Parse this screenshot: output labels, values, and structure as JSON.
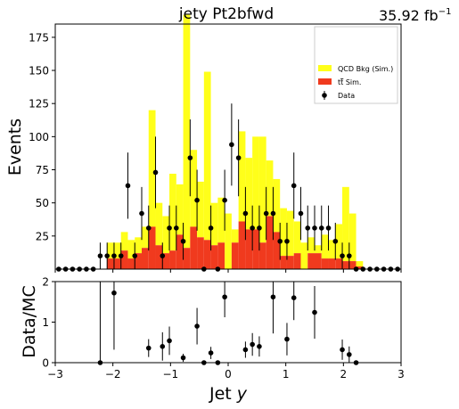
{
  "chart_data": [
    {
      "type": "bar",
      "panel": "main",
      "title": "jety  Pt2bfwd",
      "lumi_label": "35.92 fb",
      "lumi_exponent": "−1",
      "xlabel": "Jet y",
      "xlabel_text": "Jet ",
      "xlabel_var": "y",
      "ylabel": "Events",
      "xlim": [
        -3,
        3
      ],
      "ylim": [
        0,
        185
      ],
      "yticks": [
        25,
        50,
        75,
        100,
        125,
        150,
        175
      ],
      "bin_width": 0.12,
      "grid": false,
      "legend_position": "top-right",
      "legend": [
        {
          "label": "QCD Bkg (Sim.)",
          "color": "#ffff1a",
          "kind": "bar"
        },
        {
          "label": "tt Sim.",
          "label_tex": "t",
          "label_tbar": "t",
          "label_suffix": " Sim.",
          "color": "#f03a1e",
          "kind": "bar"
        },
        {
          "label": "Data",
          "color": "#000000",
          "kind": "marker"
        }
      ],
      "series": [
        {
          "name": "QCD Bkg (Sim.)",
          "color": "#ffff1a",
          "stacked_on": "tt Sim.",
          "bin_lefts": [
            -2.1,
            -1.98,
            -1.86,
            -1.74,
            -1.62,
            -1.5,
            -1.38,
            -1.26,
            -1.14,
            -1.02,
            -0.9,
            -0.78,
            -0.66,
            -0.54,
            -0.42,
            -0.3,
            -0.18,
            -0.06,
            0.06,
            0.18,
            0.3,
            0.42,
            0.54,
            0.66,
            0.78,
            0.9,
            1.02,
            1.14,
            1.26,
            1.38,
            1.5,
            1.62,
            1.74,
            1.86,
            1.98,
            2.1,
            2.22
          ],
          "values": [
            12,
            12,
            14,
            14,
            12,
            16,
            88,
            32,
            28,
            58,
            38,
            176,
            58,
            42,
            127,
            32,
            34,
            42,
            10,
            68,
            54,
            70,
            80,
            42,
            40,
            36,
            34,
            24,
            20,
            12,
            6,
            18,
            14,
            26,
            56,
            36,
            4
          ]
        },
        {
          "name": "tt Sim.",
          "color": "#f03a1e",
          "bin_lefts": [
            -2.1,
            -1.98,
            -1.86,
            -1.74,
            -1.62,
            -1.5,
            -1.38,
            -1.26,
            -1.14,
            -1.02,
            -0.9,
            -0.78,
            -0.66,
            -0.54,
            -0.42,
            -0.3,
            -0.18,
            -0.06,
            0.06,
            0.18,
            0.3,
            0.42,
            0.54,
            0.66,
            0.78,
            0.9,
            1.02,
            1.14,
            1.26,
            1.38,
            1.5,
            1.62,
            1.74,
            1.86,
            1.98,
            2.1,
            2.22
          ],
          "values": [
            8,
            8,
            14,
            8,
            12,
            16,
            32,
            18,
            12,
            14,
            26,
            16,
            32,
            24,
            22,
            18,
            20,
            0,
            20,
            36,
            30,
            30,
            20,
            40,
            28,
            10,
            10,
            12,
            0,
            12,
            12,
            8,
            8,
            8,
            6,
            6,
            2
          ]
        },
        {
          "name": "Data",
          "color": "#000000",
          "x": [
            -2.94,
            -2.82,
            -2.7,
            -2.58,
            -2.46,
            -2.34,
            -2.22,
            -2.1,
            -1.98,
            -1.86,
            -1.74,
            -1.62,
            -1.5,
            -1.38,
            -1.26,
            -1.14,
            -1.02,
            -0.9,
            -0.78,
            -0.66,
            -0.54,
            -0.42,
            -0.3,
            -0.18,
            -0.06,
            0.06,
            0.18,
            0.3,
            0.42,
            0.54,
            0.66,
            0.78,
            0.9,
            1.02,
            1.14,
            1.26,
            1.38,
            1.5,
            1.62,
            1.74,
            1.86,
            1.98,
            2.1,
            2.22,
            2.34,
            2.46,
            2.58,
            2.7,
            2.82,
            2.94
          ],
          "values": [
            0,
            0,
            0,
            0,
            0,
            0,
            10,
            10,
            10,
            10,
            63,
            10,
            42,
            31,
            73,
            10,
            31,
            31,
            21,
            84,
            52,
            0,
            31,
            0,
            52,
            94,
            84,
            42,
            31,
            31,
            42,
            42,
            21,
            21,
            63,
            42,
            31,
            31,
            31,
            31,
            21,
            10,
            10,
            0,
            0,
            0,
            0,
            0,
            0,
            0
          ],
          "errors": [
            0,
            0,
            0,
            0,
            0,
            0,
            10,
            10,
            10,
            10,
            25,
            10,
            20,
            17,
            27,
            10,
            17,
            17,
            14,
            29,
            23,
            0,
            17,
            0,
            23,
            31,
            29,
            20,
            17,
            17,
            20,
            20,
            14,
            14,
            25,
            20,
            17,
            17,
            17,
            17,
            14,
            10,
            10,
            0,
            0,
            0,
            0,
            0,
            0,
            0
          ]
        }
      ]
    },
    {
      "type": "scatter",
      "panel": "ratio",
      "ylabel": "Data/MC",
      "xlabel": "Jet y",
      "xlim": [
        -3,
        3
      ],
      "ylim": [
        0,
        2
      ],
      "yticks": [
        0,
        1,
        2
      ],
      "xticks": [
        -3,
        -2,
        -1,
        0,
        1,
        2,
        3
      ],
      "xtick_labels": [
        "−3",
        "−2",
        "−1",
        "0",
        "1",
        "2",
        "3"
      ],
      "series": [
        {
          "name": "Data/MC",
          "x": [
            -2.22,
            -1.98,
            -1.38,
            -1.14,
            -1.02,
            -0.78,
            -0.54,
            -0.42,
            -0.3,
            -0.18,
            -0.06,
            0.3,
            0.42,
            0.54,
            0.78,
            1.02,
            1.14,
            1.5,
            1.98,
            2.1,
            2.22
          ],
          "values": [
            0.0,
            1.72,
            0.36,
            0.4,
            0.54,
            0.12,
            0.9,
            0.0,
            0.24,
            0.0,
            1.62,
            0.32,
            0.45,
            0.4,
            1.62,
            0.58,
            1.6,
            1.24,
            0.32,
            0.2,
            0.0
          ],
          "errors": [
            3.0,
            1.4,
            0.22,
            0.35,
            0.35,
            0.1,
            0.45,
            0.0,
            0.15,
            0.0,
            0.5,
            0.2,
            0.28,
            0.25,
            0.9,
            0.4,
            0.55,
            0.65,
            0.25,
            0.2,
            0.0
          ]
        }
      ]
    }
  ]
}
